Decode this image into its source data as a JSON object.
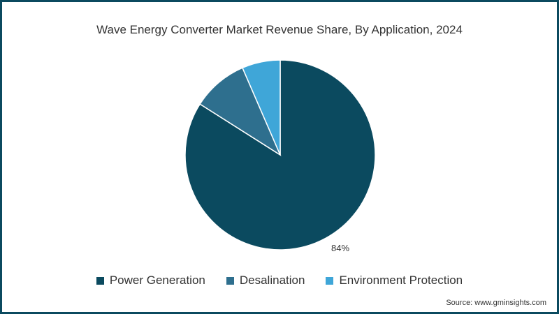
{
  "title": "Wave Energy Converter Market Revenue Share, By Application, 2024",
  "source": "Source: www.gminsights.com",
  "colors": {
    "border": "#0b4a5f",
    "power_generation": "#0b4a5f",
    "desalination": "#2e6f8e",
    "environment_protection": "#3fa6d8"
  },
  "legend": [
    {
      "label": "Power Generation",
      "color": "#0b4a5f"
    },
    {
      "label": "Desalination",
      "color": "#2e6f8e"
    },
    {
      "label": "Environment Protection",
      "color": "#3fa6d8"
    }
  ],
  "data_label": "84%",
  "chart_data": {
    "type": "pie",
    "title": "Wave Energy Converter Market Revenue Share, By Application, 2024",
    "categories": [
      "Power Generation",
      "Desalination",
      "Environment Protection"
    ],
    "values": [
      84,
      9.5,
      6.5
    ],
    "labels_shown": {
      "Power Generation": "84%"
    },
    "colors": [
      "#0b4a5f",
      "#2e6f8e",
      "#3fa6d8"
    ],
    "start_angle": "12 o'clock, clockwise",
    "legend_position": "bottom",
    "source": "Source: www.gminsights.com"
  }
}
